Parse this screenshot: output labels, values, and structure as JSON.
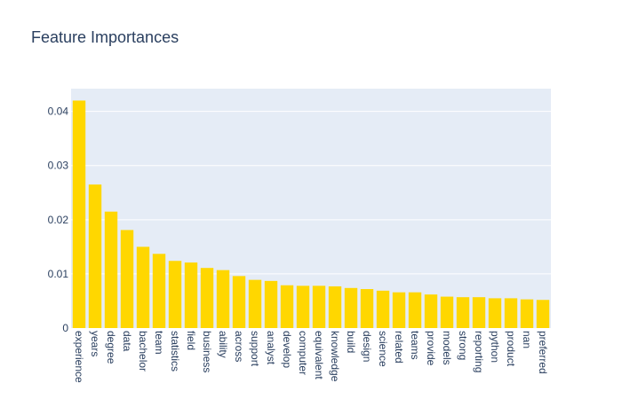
{
  "chart_data": {
    "type": "bar",
    "title": "Feature Importances",
    "xlabel": "",
    "ylabel": "",
    "categories": [
      "experience",
      "years",
      "degree",
      "data",
      "bachelor",
      "team",
      "statistics",
      "field",
      "business",
      "ability",
      "across",
      "support",
      "analyst",
      "develop",
      "computer",
      "equivalent",
      "knowledge",
      "build",
      "design",
      "science",
      "related",
      "teams",
      "provide",
      "models",
      "strong",
      "reporting",
      "python",
      "product",
      "nan",
      "preferred"
    ],
    "values": [
      0.042,
      0.0265,
      0.0215,
      0.0181,
      0.015,
      0.0137,
      0.0124,
      0.0121,
      0.0111,
      0.0107,
      0.0096,
      0.0089,
      0.0087,
      0.0079,
      0.0078,
      0.0078,
      0.0077,
      0.0074,
      0.0072,
      0.0069,
      0.0066,
      0.0066,
      0.0062,
      0.0058,
      0.0057,
      0.0057,
      0.0055,
      0.0055,
      0.0053,
      0.0052
    ],
    "ylim": [
      0,
      0.0442
    ],
    "yticks": [
      0,
      0.01,
      0.02,
      0.03,
      0.04
    ],
    "ytick_labels": [
      "0",
      "0.01",
      "0.02",
      "0.03",
      "0.04"
    ],
    "grid": true,
    "legend": "none",
    "colors": {
      "bar": "#ffd700",
      "plot_bg": "#e5ecf6",
      "grid": "#ffffff",
      "text": "#2a3f5f"
    }
  }
}
